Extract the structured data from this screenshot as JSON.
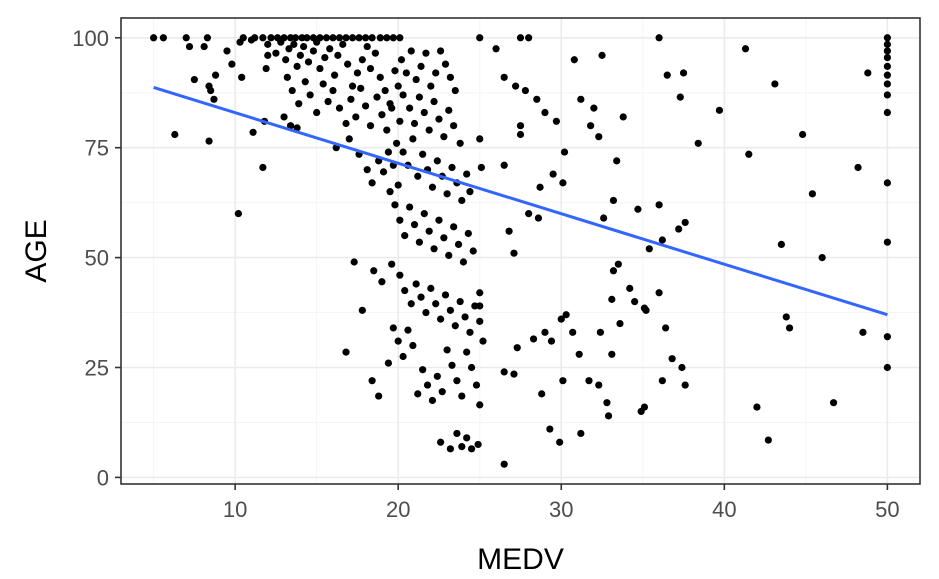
{
  "chart_data": {
    "type": "scatter",
    "title": "",
    "xlabel": "MEDV",
    "ylabel": "AGE",
    "xlim": [
      3,
      52
    ],
    "ylim": [
      -1.5,
      104.5
    ],
    "x_ticks": [
      10,
      20,
      30,
      40,
      50
    ],
    "y_ticks": [
      0,
      25,
      50,
      75,
      100
    ],
    "x_tick_labels": [
      "10",
      "20",
      "30",
      "40",
      "50"
    ],
    "y_tick_labels": [
      "0",
      "25",
      "50",
      "75",
      "100"
    ],
    "grid": true,
    "legend": "none",
    "point_color": "#000000",
    "fit_line": {
      "type": "linear",
      "color": "#3366ff",
      "x": [
        5,
        50
      ],
      "y": [
        88.7,
        37
      ]
    },
    "points": [
      [
        5,
        100
      ],
      [
        5.6,
        100
      ],
      [
        7,
        100
      ],
      [
        7.2,
        98
      ],
      [
        7.5,
        90.5
      ],
      [
        6.3,
        78
      ],
      [
        8.1,
        98
      ],
      [
        8.3,
        100
      ],
      [
        8.4,
        89
      ],
      [
        8.5,
        88
      ],
      [
        8.4,
        76.5
      ],
      [
        8.8,
        91.5
      ],
      [
        8.7,
        86
      ],
      [
        9.5,
        97
      ],
      [
        9.8,
        94
      ],
      [
        10.2,
        60
      ],
      [
        10.3,
        99
      ],
      [
        10.4,
        91
      ],
      [
        11,
        99.5
      ],
      [
        11.1,
        78.5
      ],
      [
        11.8,
        81
      ],
      [
        11.7,
        70.5
      ],
      [
        11.9,
        93
      ],
      [
        12,
        96
      ],
      [
        10.5,
        100
      ],
      [
        11.2,
        100
      ],
      [
        11.7,
        100
      ],
      [
        12.2,
        100
      ],
      [
        12.6,
        100
      ],
      [
        13,
        100
      ],
      [
        13.4,
        100
      ],
      [
        13.7,
        100
      ],
      [
        14.1,
        100
      ],
      [
        14.4,
        100
      ],
      [
        14.8,
        100
      ],
      [
        15.2,
        100
      ],
      [
        15.6,
        100
      ],
      [
        16,
        100
      ],
      [
        16.4,
        100
      ],
      [
        16.8,
        100
      ],
      [
        17.2,
        100
      ],
      [
        17.6,
        100
      ],
      [
        18,
        100
      ],
      [
        18.4,
        100
      ],
      [
        18.9,
        100
      ],
      [
        19.3,
        100
      ],
      [
        19.7,
        100
      ],
      [
        20.1,
        100
      ],
      [
        12,
        98.5
      ],
      [
        12.5,
        96.5
      ],
      [
        12.8,
        99
      ],
      [
        13.1,
        95
      ],
      [
        13.3,
        97.5
      ],
      [
        13.6,
        98.5
      ],
      [
        13.8,
        93.5
      ],
      [
        14,
        96
      ],
      [
        14.2,
        98
      ],
      [
        14.5,
        94.5
      ],
      [
        14.8,
        97
      ],
      [
        15,
        99
      ],
      [
        15.2,
        93
      ],
      [
        15.5,
        95.5
      ],
      [
        15.8,
        97.5
      ],
      [
        16.1,
        91.5
      ],
      [
        16.3,
        96
      ],
      [
        16.6,
        98.5
      ],
      [
        16.9,
        94
      ],
      [
        17.2,
        89
      ],
      [
        17.5,
        92
      ],
      [
        17.8,
        95
      ],
      [
        18.1,
        98
      ],
      [
        18.3,
        93
      ],
      [
        18.6,
        96.5
      ],
      [
        18.9,
        91
      ],
      [
        19.2,
        88
      ],
      [
        19.5,
        85
      ],
      [
        19.8,
        92.5
      ],
      [
        20,
        89
      ],
      [
        13.2,
        91
      ],
      [
        13.5,
        88
      ],
      [
        13.9,
        85
      ],
      [
        14.3,
        90
      ],
      [
        14.6,
        87
      ],
      [
        15,
        83
      ],
      [
        15.4,
        89.5
      ],
      [
        15.7,
        85.5
      ],
      [
        16,
        88
      ],
      [
        16.4,
        84
      ],
      [
        16.8,
        80.5
      ],
      [
        17.1,
        86
      ],
      [
        17.4,
        82
      ],
      [
        17.7,
        88.5
      ],
      [
        18,
        84.5
      ],
      [
        18.3,
        80
      ],
      [
        18.7,
        86.5
      ],
      [
        19,
        82.5
      ],
      [
        19.3,
        79
      ],
      [
        19.6,
        84
      ],
      [
        19.9,
        76
      ],
      [
        20.1,
        81
      ],
      [
        13,
        82
      ],
      [
        13.4,
        80
      ],
      [
        13.8,
        79.5
      ],
      [
        16.2,
        75
      ],
      [
        17,
        77
      ],
      [
        17.6,
        73.5
      ],
      [
        18.1,
        70
      ],
      [
        18.4,
        67
      ],
      [
        18.8,
        72
      ],
      [
        19.1,
        69.5
      ],
      [
        19.4,
        74
      ],
      [
        19.7,
        71
      ],
      [
        20,
        66.5
      ],
      [
        20.2,
        95
      ],
      [
        20.5,
        92
      ],
      [
        20.8,
        97
      ],
      [
        21.1,
        90.5
      ],
      [
        21.4,
        93.5
      ],
      [
        21.7,
        96.5
      ],
      [
        22,
        89
      ],
      [
        22.3,
        92
      ],
      [
        22.6,
        97
      ],
      [
        22.9,
        94
      ],
      [
        23.2,
        91
      ],
      [
        23.5,
        88
      ],
      [
        20.3,
        87
      ],
      [
        20.7,
        84
      ],
      [
        21,
        80.5
      ],
      [
        21.3,
        86.5
      ],
      [
        21.6,
        83
      ],
      [
        21.9,
        79
      ],
      [
        22.2,
        85.5
      ],
      [
        22.5,
        81.5
      ],
      [
        22.8,
        77.5
      ],
      [
        23.1,
        83.5
      ],
      [
        23.4,
        80
      ],
      [
        23.8,
        76
      ],
      [
        20.3,
        74
      ],
      [
        20.6,
        71
      ],
      [
        20.9,
        77
      ],
      [
        21.2,
        68.5
      ],
      [
        21.5,
        73.5
      ],
      [
        21.8,
        70
      ],
      [
        22.1,
        66
      ],
      [
        22.4,
        72
      ],
      [
        22.7,
        68.5
      ],
      [
        23,
        64.5
      ],
      [
        23.3,
        70.5
      ],
      [
        23.6,
        67
      ],
      [
        23.9,
        63
      ],
      [
        24.2,
        69
      ],
      [
        24.4,
        65
      ],
      [
        19.5,
        65
      ],
      [
        19.8,
        62
      ],
      [
        20.1,
        58.5
      ],
      [
        20.4,
        55
      ],
      [
        20.7,
        61.5
      ],
      [
        21,
        57.5
      ],
      [
        21.3,
        53.5
      ],
      [
        21.6,
        60
      ],
      [
        21.9,
        56
      ],
      [
        22.2,
        52
      ],
      [
        22.5,
        58.5
      ],
      [
        22.8,
        54.5
      ],
      [
        23.1,
        50.5
      ],
      [
        23.4,
        57
      ],
      [
        23.7,
        53
      ],
      [
        24,
        49
      ],
      [
        24.3,
        55.5
      ],
      [
        24.6,
        51.5
      ],
      [
        18.5,
        47
      ],
      [
        19,
        44.5
      ],
      [
        19.6,
        48.5
      ],
      [
        20.1,
        46
      ],
      [
        20.4,
        42.5
      ],
      [
        20.8,
        39.5
      ],
      [
        21.1,
        44
      ],
      [
        21.4,
        41
      ],
      [
        21.7,
        37.5
      ],
      [
        22,
        43
      ],
      [
        22.3,
        39.5
      ],
      [
        22.6,
        36
      ],
      [
        22.9,
        41.5
      ],
      [
        23.2,
        38
      ],
      [
        23.5,
        34.5
      ],
      [
        23.8,
        40
      ],
      [
        24.1,
        36.5
      ],
      [
        24.4,
        33
      ],
      [
        24.7,
        39
      ],
      [
        25,
        35.5
      ],
      [
        17.3,
        49
      ],
      [
        17.8,
        38
      ],
      [
        16.8,
        28.5
      ],
      [
        18.4,
        22
      ],
      [
        18.8,
        18.5
      ],
      [
        19.4,
        26
      ],
      [
        19.7,
        34
      ],
      [
        20,
        31
      ],
      [
        20.3,
        27.5
      ],
      [
        20.6,
        33.5
      ],
      [
        20.9,
        30
      ],
      [
        21.2,
        19
      ],
      [
        21.5,
        24.5
      ],
      [
        21.8,
        21
      ],
      [
        22.1,
        17.5
      ],
      [
        22.4,
        23
      ],
      [
        22.7,
        19.5
      ],
      [
        23,
        29
      ],
      [
        23.3,
        25.5
      ],
      [
        23.6,
        22
      ],
      [
        23.9,
        18.5
      ],
      [
        24.2,
        28.5
      ],
      [
        24.5,
        25
      ],
      [
        24.8,
        21
      ],
      [
        25,
        16.5
      ],
      [
        22.6,
        8
      ],
      [
        23.2,
        6.5
      ],
      [
        23.6,
        10
      ],
      [
        23.9,
        7
      ],
      [
        24.2,
        9
      ],
      [
        24.5,
        6.5
      ],
      [
        24.9,
        7.5
      ],
      [
        26.5,
        3
      ],
      [
        25,
        100
      ],
      [
        27.5,
        100
      ],
      [
        28,
        100
      ],
      [
        26,
        97.5
      ],
      [
        26.5,
        91
      ],
      [
        27.2,
        89
      ],
      [
        27.8,
        88
      ],
      [
        28.5,
        86
      ],
      [
        29,
        83
      ],
      [
        27.5,
        80
      ],
      [
        27.5,
        78
      ],
      [
        29.7,
        81
      ],
      [
        30.2,
        74
      ],
      [
        30.1,
        67
      ],
      [
        29.5,
        69
      ],
      [
        28.7,
        66
      ],
      [
        28,
        60
      ],
      [
        28.6,
        59
      ],
      [
        26.8,
        56
      ],
      [
        27.1,
        51
      ],
      [
        26.5,
        71
      ],
      [
        25,
        77
      ],
      [
        25.1,
        70.5
      ],
      [
        25,
        42
      ],
      [
        25,
        39
      ],
      [
        25.2,
        31
      ],
      [
        26.5,
        24
      ],
      [
        27.1,
        23.5
      ],
      [
        27.3,
        29.5
      ],
      [
        28.3,
        31.5
      ],
      [
        29,
        33
      ],
      [
        29.4,
        31
      ],
      [
        30,
        36
      ],
      [
        30.3,
        37
      ],
      [
        30.7,
        33
      ],
      [
        31.1,
        28
      ],
      [
        28.8,
        19
      ],
      [
        30.1,
        22
      ],
      [
        29.3,
        11
      ],
      [
        29.9,
        8
      ],
      [
        31.2,
        10
      ],
      [
        31.7,
        22
      ],
      [
        32.3,
        21
      ],
      [
        32.4,
        33
      ],
      [
        32.8,
        17
      ],
      [
        32.9,
        14
      ],
      [
        33.1,
        28
      ],
      [
        30.8,
        95
      ],
      [
        32.5,
        96
      ],
      [
        31.2,
        86
      ],
      [
        32,
        84
      ],
      [
        31.8,
        80
      ],
      [
        32.3,
        77.5
      ],
      [
        33.4,
        72
      ],
      [
        33.8,
        82
      ],
      [
        32.6,
        59
      ],
      [
        33.2,
        63
      ],
      [
        34.7,
        61
      ],
      [
        35.4,
        52
      ],
      [
        36,
        62
      ],
      [
        36.2,
        54
      ],
      [
        33.5,
        48.5
      ],
      [
        34.2,
        43
      ],
      [
        34.5,
        40
      ],
      [
        35.1,
        38.5
      ],
      [
        36,
        42
      ],
      [
        37.2,
        56.5
      ],
      [
        37.6,
        58
      ],
      [
        35.2,
        38
      ],
      [
        36.4,
        34
      ],
      [
        36.8,
        27
      ],
      [
        37.4,
        25
      ],
      [
        37.6,
        21
      ],
      [
        35.1,
        16
      ],
      [
        36.2,
        22
      ],
      [
        33.2,
        47
      ],
      [
        33.1,
        40.5
      ],
      [
        33.6,
        35
      ],
      [
        34.9,
        15
      ],
      [
        36,
        100
      ],
      [
        36.5,
        91.5
      ],
      [
        37.5,
        92
      ],
      [
        37.3,
        86.5
      ],
      [
        39.7,
        83.5
      ],
      [
        38.4,
        76
      ],
      [
        41.3,
        97.5
      ],
      [
        41.5,
        73.5
      ],
      [
        43.1,
        89.5
      ],
      [
        43.5,
        53
      ],
      [
        43.8,
        36.5
      ],
      [
        44,
        34
      ],
      [
        44.8,
        78
      ],
      [
        45.4,
        64.5
      ],
      [
        46,
        50
      ],
      [
        42,
        16
      ],
      [
        42.7,
        8.5
      ],
      [
        46.7,
        17
      ],
      [
        48.2,
        70.5
      ],
      [
        48.5,
        33
      ],
      [
        48.8,
        92
      ],
      [
        50,
        100
      ],
      [
        50,
        98.5
      ],
      [
        50,
        97
      ],
      [
        50,
        95.5
      ],
      [
        50,
        93.5
      ],
      [
        50,
        91.5
      ],
      [
        50,
        89.5
      ],
      [
        50,
        87
      ],
      [
        50,
        83
      ],
      [
        50,
        67
      ],
      [
        50,
        53.5
      ],
      [
        50,
        32
      ],
      [
        50,
        25
      ]
    ]
  }
}
